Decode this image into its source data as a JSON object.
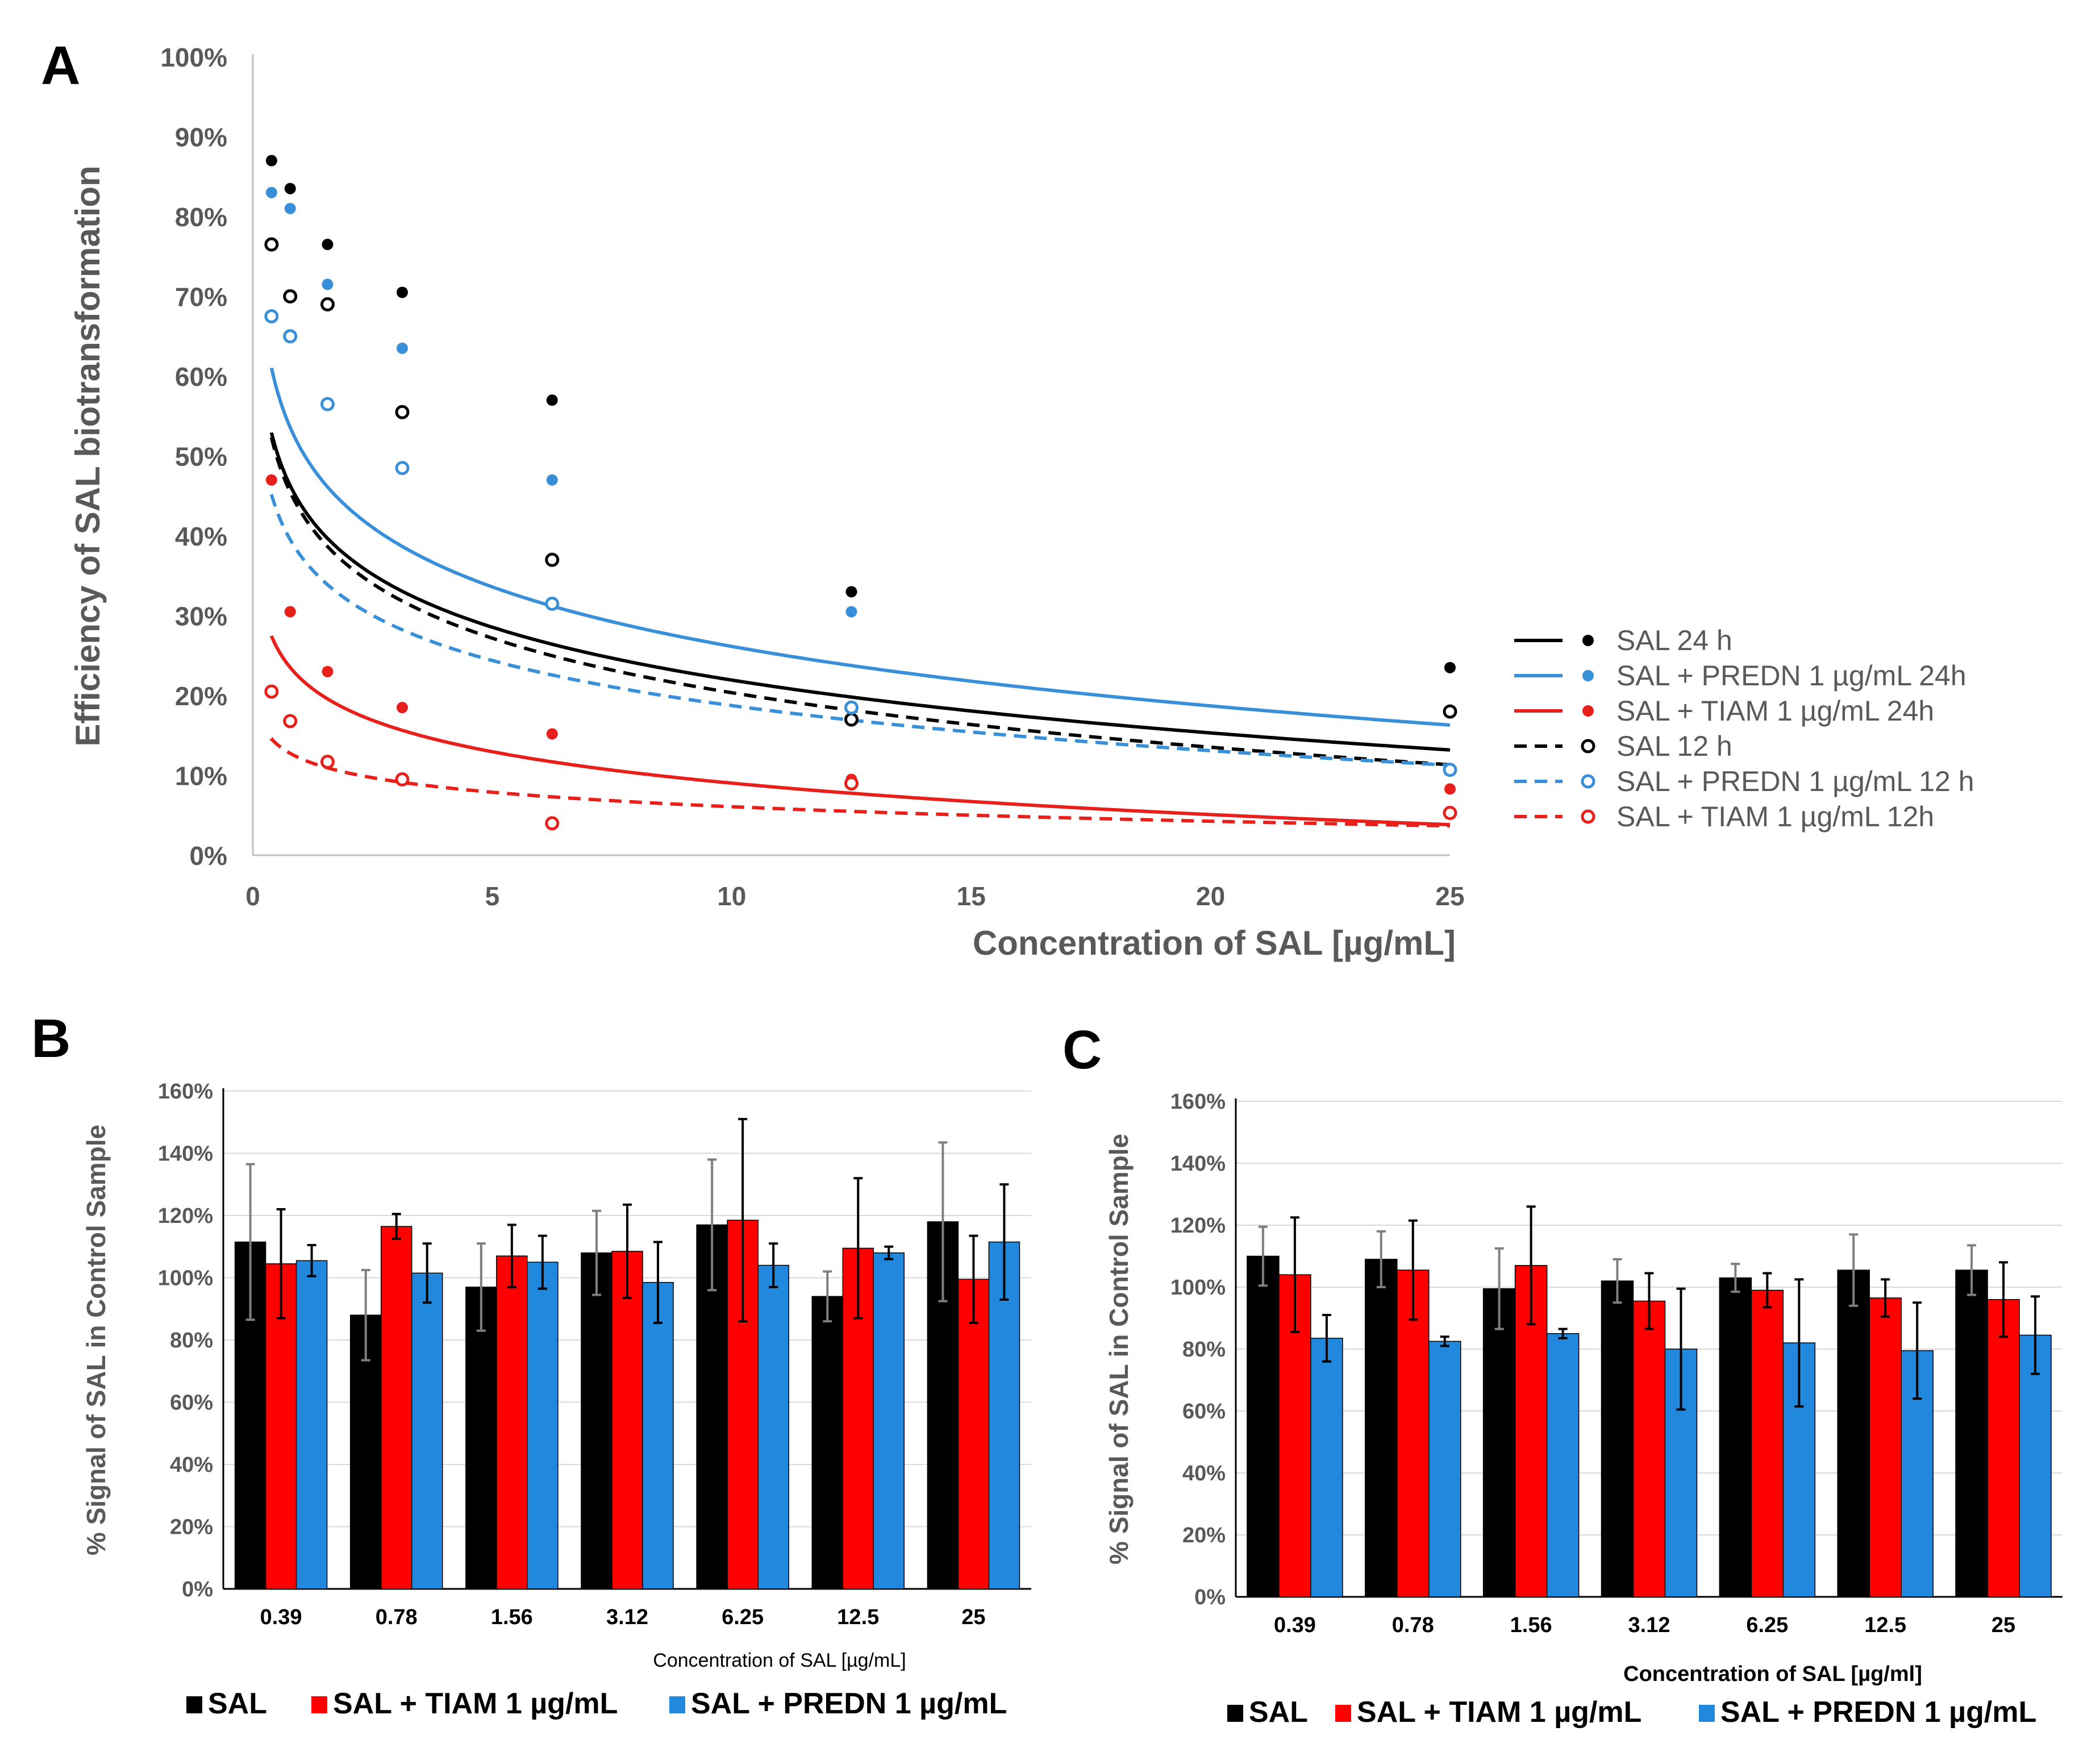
{
  "chart_data": [
    {
      "panel": "A",
      "type": "scatter",
      "title": "",
      "xlabel": "Concentration of SAL [µg/mL]",
      "ylabel": "Efficiency of SAL biotransformation",
      "xlim": [
        0,
        25
      ],
      "ylim": [
        0,
        1.0
      ],
      "xticks": [
        0,
        5,
        10,
        15,
        20,
        25
      ],
      "yticks": [
        0,
        0.1,
        0.2,
        0.3,
        0.4,
        0.5,
        0.6,
        0.7,
        0.8,
        0.9,
        1.0
      ],
      "ytick_labels": [
        "0%",
        "10%",
        "20%",
        "30%",
        "40%",
        "50%",
        "60%",
        "70%",
        "80%",
        "90%",
        "100%"
      ],
      "x": [
        0.39,
        0.78,
        1.56,
        3.12,
        6.25,
        12.5,
        25
      ],
      "legend_position": "right",
      "series": [
        {
          "name": "SAL 24 h",
          "color": "#000000",
          "marker": "filled",
          "dashed": false,
          "values": [
            0.87,
            0.835,
            0.765,
            0.705,
            0.57,
            0.33,
            0.235
          ],
          "trend": {
            "a": 0.4393,
            "b": 0.0955
          }
        },
        {
          "name": "SAL + PREDN 1 µg/mL 24h",
          "color": "#3a90d8",
          "marker": "filled",
          "dashed": false,
          "values": [
            0.83,
            0.81,
            0.715,
            0.635,
            0.47,
            0.305,
            0.18
          ],
          "trend": {
            "a": 0.5091,
            "b": 0.1075
          }
        },
        {
          "name": "SAL + TIAM 1 µg/mL 24h",
          "color": "#e8201b",
          "marker": "filled",
          "dashed": false,
          "values": [
            0.47,
            0.305,
            0.23,
            0.185,
            0.152,
            0.095,
            0.083
          ],
          "trend": {
            "a": 0.2211,
            "b": 0.0568
          }
        },
        {
          "name": "SAL 12 h",
          "color": "#000000",
          "marker": "open",
          "dashed": true,
          "values": [
            0.765,
            0.7,
            0.69,
            0.555,
            0.37,
            0.17,
            0.18
          ],
          "trend": {
            "a": 0.4304,
            "b": 0.0985
          }
        },
        {
          "name": "SAL + PREDN 1 µg/mL 12 h",
          "color": "#3a90d8",
          "marker": "open",
          "dashed": true,
          "values": [
            0.675,
            0.65,
            0.565,
            0.485,
            0.315,
            0.185,
            0.107
          ],
          "trend": {
            "a": 0.3751,
            "b": 0.0815
          }
        },
        {
          "name": "SAL + TIAM 1 µg/mL 12h",
          "color": "#e8201b",
          "marker": "open",
          "dashed": true,
          "values": [
            0.205,
            0.168,
            0.117,
            0.095,
            0.04,
            0.09,
            0.053
          ],
          "trend": {
            "a": 0.1211,
            "b": 0.0262
          }
        }
      ]
    },
    {
      "panel": "B",
      "type": "bar",
      "xlabel": "Concentration of SAL [µg/mL]",
      "ylabel": "% Signal of SAL in Control Sample",
      "ylim": [
        0,
        1.6
      ],
      "yticks": [
        0,
        0.2,
        0.4,
        0.6,
        0.8,
        1.0,
        1.2,
        1.4,
        1.6
      ],
      "ytick_labels": [
        "0%",
        "20%",
        "40%",
        "60%",
        "80%",
        "100%",
        "120%",
        "140%",
        "160%"
      ],
      "categories": [
        "0.39",
        "0.78",
        "1.56",
        "3.12",
        "6.25",
        "12.5",
        "25"
      ],
      "series": [
        {
          "name": "SAL",
          "color": "#000000",
          "values": [
            1.115,
            0.88,
            0.97,
            1.08,
            1.17,
            0.94,
            1.18
          ],
          "errors": [
            0.25,
            0.145,
            0.14,
            0.135,
            0.21,
            0.08,
            0.255
          ]
        },
        {
          "name": "SAL + TIAM 1 µg/mL",
          "color": "#ff0000",
          "values": [
            1.045,
            1.165,
            1.07,
            1.085,
            1.185,
            1.095,
            0.995
          ],
          "errors": [
            0.175,
            0.04,
            0.1,
            0.15,
            0.325,
            0.225,
            0.14
          ]
        },
        {
          "name": "SAL + PREDN 1 µg/mL",
          "color": "#2288dd",
          "values": [
            1.055,
            1.015,
            1.05,
            0.985,
            1.04,
            1.08,
            1.115
          ],
          "errors": [
            0.05,
            0.095,
            0.085,
            0.13,
            0.07,
            0.02,
            0.185
          ]
        }
      ]
    },
    {
      "panel": "C",
      "type": "bar",
      "xlabel": "Concentration of SAL [µg/ml]",
      "ylabel": "% Signal of SAL in Control Sample",
      "ylim": [
        0,
        1.6
      ],
      "yticks": [
        0,
        0.2,
        0.4,
        0.6,
        0.8,
        1.0,
        1.2,
        1.4,
        1.6
      ],
      "ytick_labels": [
        "0%",
        "20%",
        "40%",
        "60%",
        "80%",
        "100%",
        "120%",
        "140%",
        "160%"
      ],
      "categories": [
        "0.39",
        "0.78",
        "1.56",
        "3.12",
        "6.25",
        "12.5",
        "25"
      ],
      "series": [
        {
          "name": "SAL",
          "color": "#000000",
          "values": [
            1.1,
            1.09,
            0.995,
            1.02,
            1.03,
            1.055,
            1.055
          ],
          "errors": [
            0.095,
            0.09,
            0.13,
            0.07,
            0.045,
            0.115,
            0.08
          ]
        },
        {
          "name": "SAL + TIAM 1 µg/mL",
          "color": "#ff0000",
          "values": [
            1.04,
            1.055,
            1.07,
            0.955,
            0.99,
            0.965,
            0.96
          ],
          "errors": [
            0.185,
            0.16,
            0.19,
            0.09,
            0.055,
            0.06,
            0.12
          ]
        },
        {
          "name": "SAL + PREDN 1 µg/mL",
          "color": "#2288dd",
          "values": [
            0.835,
            0.825,
            0.85,
            0.8,
            0.82,
            0.795,
            0.845
          ],
          "errors": [
            0.075,
            0.015,
            0.015,
            0.195,
            0.205,
            0.155,
            0.125
          ]
        }
      ]
    }
  ],
  "panel_labels": {
    "a": "A",
    "b": "B",
    "c": "C"
  }
}
